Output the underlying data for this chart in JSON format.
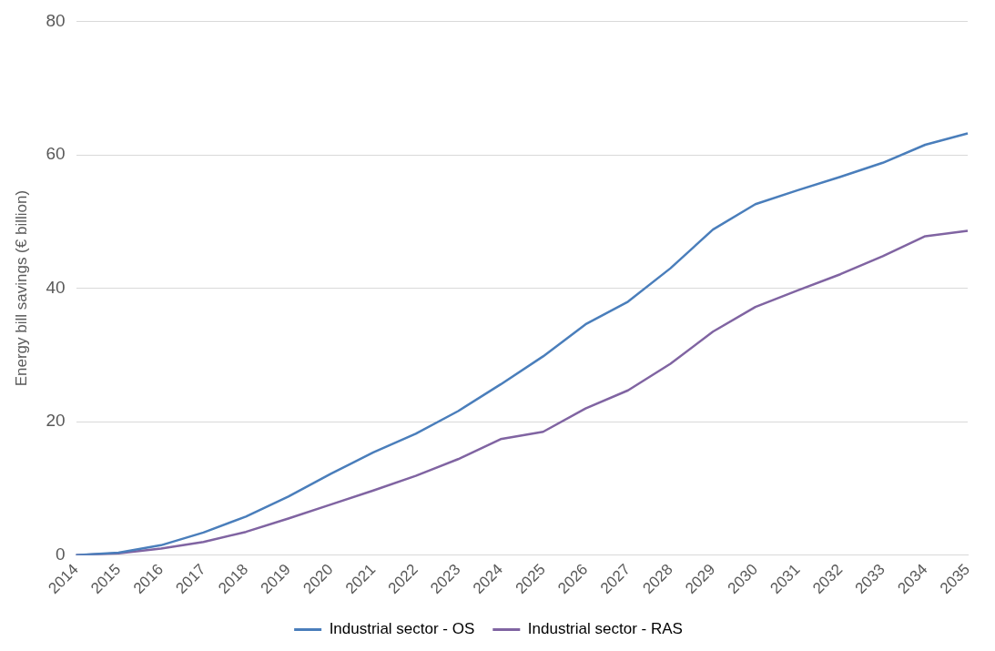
{
  "chart_data": {
    "type": "line",
    "ylabel": "Energy bill savings (€ billion)",
    "categories": [
      "2014",
      "2015",
      "2016",
      "2017",
      "2018",
      "2019",
      "2020",
      "2021",
      "2022",
      "2023",
      "2024",
      "2025",
      "2026",
      "2027",
      "2028",
      "2029",
      "2030",
      "2031",
      "2032",
      "2033",
      "2034",
      "2035"
    ],
    "series": [
      {
        "name": "Industrial sector - OS",
        "color": "#4a7ebb",
        "values": [
          0,
          0.4,
          1.5,
          3.4,
          5.8,
          8.8,
          12.2,
          15.4,
          18.2,
          21.6,
          25.6,
          29.8,
          34.6,
          38,
          43,
          48.8,
          52.6,
          54.7,
          56.7,
          58.8,
          61.5,
          63.2
        ]
      },
      {
        "name": "Industrial sector - RAS",
        "color": "#8064a2",
        "values": [
          0,
          0.3,
          1,
          2,
          3.5,
          5.5,
          7.6,
          9.7,
          11.9,
          14.4,
          17.4,
          18.5,
          22,
          24.7,
          28.7,
          33.5,
          37.2,
          39.7,
          42.1,
          44.8,
          47.8,
          48.6
        ]
      }
    ],
    "ylim": [
      0,
      80
    ],
    "yticks": [
      0,
      20,
      40,
      60,
      80
    ],
    "grid": "y",
    "legend": "bottom",
    "marker": "none",
    "line_style": "solid"
  }
}
